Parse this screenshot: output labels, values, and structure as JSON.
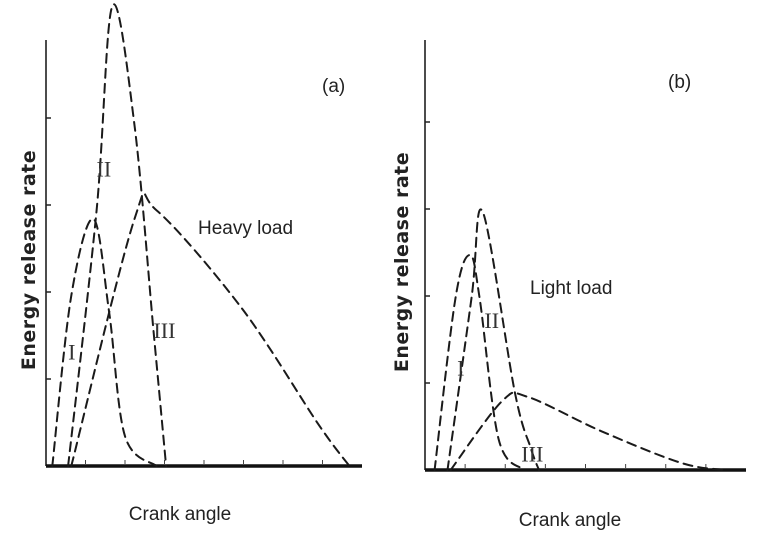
{
  "chart_data": [
    {
      "type": "line",
      "panel_label": "(a)",
      "ylabel": "Energy release rate",
      "xlabel": "Crank angle",
      "annotation": "Heavy load",
      "xlim": [
        0,
        10
      ],
      "ylim": [
        0,
        5
      ],
      "series": [
        {
          "name": "I",
          "x": [
            0.2,
            0.8,
            1.5,
            2.0,
            2.5,
            3.5
          ],
          "y": [
            0,
            2.0,
            2.9,
            1.8,
            0.35,
            0
          ]
        },
        {
          "name": "II",
          "x": [
            0.7,
            1.6,
            2.1,
            2.8,
            3.4,
            3.8
          ],
          "y": [
            0,
            3.0,
            5.4,
            4.0,
            1.6,
            0
          ]
        },
        {
          "name": "III",
          "x": [
            0.8,
            2.8,
            3.5,
            6.2,
            8.6,
            9.6
          ],
          "y": [
            0,
            2.9,
            3.0,
            1.85,
            0.5,
            0
          ]
        }
      ]
    },
    {
      "type": "line",
      "panel_label": "(b)",
      "ylabel": "Energy release rate",
      "xlabel": "Crank angle",
      "annotation": "Light load",
      "xlim": [
        0,
        10
      ],
      "ylim": [
        0,
        5
      ],
      "series": [
        {
          "name": "I",
          "x": [
            0.3,
            0.95,
            1.4,
            1.7,
            2.3,
            3.1
          ],
          "y": [
            0,
            2.0,
            2.5,
            2.0,
            0.35,
            0
          ]
        },
        {
          "name": "II",
          "x": [
            0.7,
            1.45,
            1.8,
            2.8,
            3.3,
            3.55
          ],
          "y": [
            0,
            2.0,
            3.0,
            0.9,
            0.25,
            0
          ]
        },
        {
          "name": "III",
          "x": [
            0.8,
            2.4,
            3.2,
            5.5,
            8.0,
            9.4
          ],
          "y": [
            0,
            0.8,
            0.85,
            0.45,
            0.08,
            0
          ]
        }
      ]
    }
  ]
}
